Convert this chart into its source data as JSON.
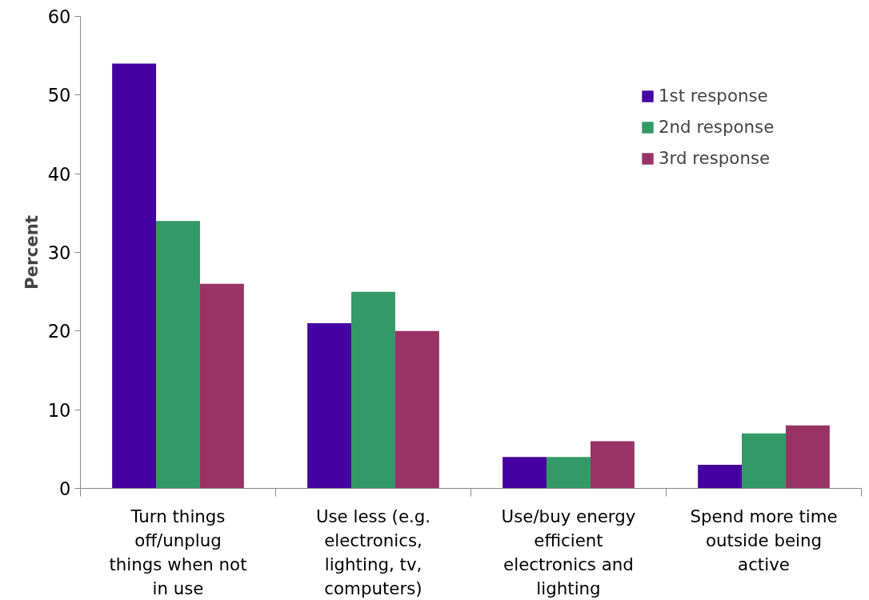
{
  "chart_data": {
    "type": "bar",
    "ylabel": "Percent",
    "categories": [
      "Turn things off/unplug things when not in use",
      "Use less (e.g. electronics, lighting, tv, computers)",
      "Use/buy energy efficient electronics and lighting",
      "Spend more time outside being active"
    ],
    "series": [
      {
        "name": "1st response",
        "color": "#4400a0",
        "values": [
          54,
          21,
          4,
          3
        ]
      },
      {
        "name": "2nd response",
        "color": "#339966",
        "values": [
          34,
          25,
          4,
          7
        ]
      },
      {
        "name": "3rd response",
        "color": "#993366",
        "values": [
          26,
          20,
          6,
          8
        ]
      }
    ],
    "ylim": [
      0,
      60
    ],
    "yticks": [
      0,
      10,
      20,
      30,
      40,
      50,
      60
    ],
    "grid": false,
    "legend": "right"
  }
}
